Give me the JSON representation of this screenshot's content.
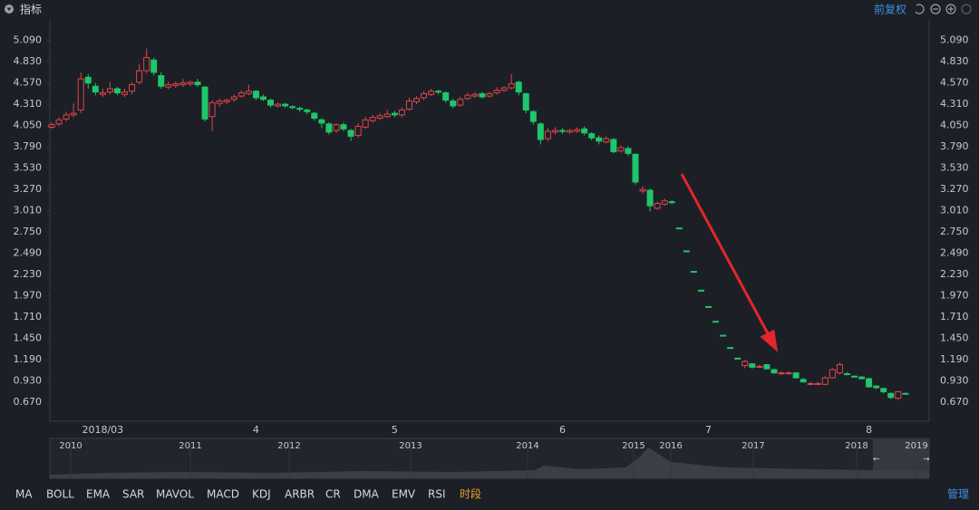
{
  "header": {
    "title": "指标",
    "adjust": "前复权"
  },
  "chart_data": {
    "type": "candlestick",
    "categories": [
      null,
      null,
      null,
      null,
      null,
      null,
      null,
      "2018/03",
      null,
      null,
      null,
      null,
      null,
      null,
      null,
      null,
      null,
      null,
      null,
      null,
      null,
      null,
      null,
      null,
      null,
      null,
      null,
      null,
      "4",
      null,
      null,
      null,
      null,
      null,
      null,
      null,
      null,
      null,
      null,
      null,
      null,
      null,
      null,
      null,
      null,
      null,
      null,
      "5",
      null,
      null,
      null,
      null,
      null,
      null,
      null,
      null,
      null,
      null,
      null,
      null,
      null,
      null,
      null,
      null,
      null,
      null,
      null,
      null,
      null,
      null,
      "6",
      null,
      null,
      null,
      null,
      null,
      null,
      null,
      null,
      null,
      null,
      null,
      null,
      null,
      null,
      null,
      null,
      null,
      null,
      null,
      "7",
      null,
      null,
      null,
      null,
      null,
      null,
      null,
      null,
      null,
      null,
      null,
      null,
      null,
      null,
      null,
      null,
      null,
      null,
      null,
      null,
      null,
      "8",
      null,
      null,
      null,
      null,
      null
    ],
    "open": [
      4.03,
      4.07,
      4.13,
      4.18,
      4.24,
      4.64,
      4.53,
      4.43,
      4.46,
      4.5,
      4.43,
      4.47,
      4.58,
      4.72,
      4.85,
      4.66,
      4.52,
      4.54,
      4.55,
      4.56,
      4.58,
      4.52,
      4.16,
      4.32,
      4.34,
      4.37,
      4.41,
      4.44,
      4.47,
      4.4,
      4.36,
      4.29,
      4.31,
      4.28,
      4.26,
      4.24,
      4.2,
      4.12,
      4.07,
      3.99,
      4.06,
      3.99,
      3.93,
      4.03,
      4.11,
      4.14,
      4.16,
      4.2,
      4.18,
      4.25,
      4.34,
      4.39,
      4.43,
      4.47,
      4.45,
      4.35,
      4.3,
      4.38,
      4.41,
      4.44,
      4.41,
      4.45,
      4.48,
      4.51,
      4.58,
      4.44,
      4.22,
      4.07,
      3.89,
      3.97,
      3.99,
      3.97,
      3.98,
      4.01,
      3.95,
      3.9,
      3.85,
      3.88,
      3.74,
      3.77,
      3.7,
      3.25,
      3.26,
      3.04,
      3.09,
      3.12,
      2.8,
      2.52,
      2.27,
      2.04,
      1.84,
      1.66,
      1.49,
      1.34,
      1.21,
      1.12,
      1.14,
      1.1,
      1.13,
      1.07,
      1.03,
      1.02,
      1.03,
      0.95,
      0.89,
      0.9,
      0.89,
      0.97,
      1.03,
      1.02,
      0.99,
      0.98,
      0.96,
      0.87,
      0.84,
      0.78,
      0.72,
      0.78
    ],
    "high": [
      4.09,
      4.15,
      4.22,
      4.32,
      4.7,
      4.68,
      4.57,
      4.5,
      4.58,
      4.52,
      4.5,
      4.58,
      4.8,
      4.99,
      4.88,
      4.7,
      4.59,
      4.59,
      4.62,
      4.6,
      4.62,
      4.53,
      4.36,
      4.38,
      4.38,
      4.43,
      4.48,
      4.55,
      4.48,
      4.43,
      4.38,
      4.33,
      4.33,
      4.3,
      4.28,
      4.26,
      4.22,
      4.14,
      4.09,
      4.08,
      4.09,
      4.01,
      4.08,
      4.16,
      4.18,
      4.2,
      4.24,
      4.23,
      4.27,
      4.39,
      4.41,
      4.47,
      4.5,
      4.49,
      4.47,
      4.38,
      4.4,
      4.45,
      4.46,
      4.46,
      4.46,
      4.52,
      4.53,
      4.68,
      4.6,
      4.45,
      4.24,
      4.09,
      4.02,
      4.03,
      4.02,
      4.01,
      4.03,
      4.04,
      3.97,
      3.93,
      3.92,
      3.9,
      3.81,
      3.8,
      3.71,
      3.31,
      3.28,
      3.12,
      3.16,
      3.14,
      2.8,
      2.52,
      2.27,
      2.04,
      1.84,
      1.66,
      1.49,
      1.34,
      1.21,
      1.19,
      1.15,
      1.13,
      1.14,
      1.08,
      1.05,
      1.05,
      1.04,
      0.97,
      0.92,
      0.92,
      0.99,
      1.09,
      1.16,
      1.04,
      1.0,
      0.99,
      0.97,
      0.88,
      0.85,
      0.79,
      0.81,
      0.79
    ],
    "low": [
      4.01,
      4.04,
      4.1,
      4.15,
      4.2,
      4.5,
      4.42,
      4.4,
      4.43,
      4.42,
      4.4,
      4.43,
      4.55,
      4.68,
      4.66,
      4.5,
      4.49,
      4.51,
      4.52,
      4.53,
      4.52,
      4.1,
      3.98,
      4.28,
      4.31,
      4.34,
      4.39,
      4.42,
      4.36,
      4.35,
      4.27,
      4.27,
      4.27,
      4.25,
      4.22,
      4.19,
      4.11,
      4.02,
      3.94,
      3.96,
      3.98,
      3.86,
      3.9,
      4.01,
      4.08,
      4.12,
      4.14,
      4.15,
      4.15,
      4.23,
      4.31,
      4.36,
      4.41,
      4.43,
      4.33,
      4.26,
      4.28,
      4.36,
      4.39,
      4.38,
      4.39,
      4.43,
      4.46,
      4.49,
      4.42,
      4.2,
      4.06,
      3.82,
      3.86,
      3.94,
      3.95,
      3.95,
      3.96,
      3.93,
      3.87,
      3.82,
      3.83,
      3.71,
      3.72,
      3.68,
      3.33,
      3.22,
      3.0,
      3.02,
      3.07,
      3.09,
      2.8,
      2.52,
      2.27,
      2.04,
      1.84,
      1.66,
      1.49,
      1.34,
      1.21,
      1.09,
      1.08,
      1.09,
      1.07,
      1.02,
      1.01,
      1.01,
      0.96,
      0.91,
      0.88,
      0.89,
      0.88,
      0.96,
      1.01,
      1.0,
      0.97,
      0.95,
      0.85,
      0.83,
      0.78,
      0.71,
      0.7,
      0.77
    ],
    "close": [
      4.06,
      4.12,
      4.18,
      4.2,
      4.62,
      4.57,
      4.46,
      4.45,
      4.5,
      4.45,
      4.46,
      4.55,
      4.72,
      4.88,
      4.7,
      4.53,
      4.55,
      4.56,
      4.57,
      4.58,
      4.55,
      4.13,
      4.33,
      4.35,
      4.36,
      4.4,
      4.45,
      4.47,
      4.39,
      4.37,
      4.3,
      4.31,
      4.29,
      4.27,
      4.25,
      4.22,
      4.14,
      4.08,
      3.97,
      4.06,
      4.01,
      3.92,
      4.04,
      4.12,
      4.15,
      4.17,
      4.19,
      4.18,
      4.24,
      4.35,
      4.38,
      4.44,
      4.47,
      4.46,
      4.36,
      4.29,
      4.37,
      4.42,
      4.43,
      4.4,
      4.44,
      4.48,
      4.51,
      4.56,
      4.46,
      4.24,
      4.1,
      3.88,
      3.98,
      3.99,
      3.98,
      3.99,
      4.0,
      3.96,
      3.9,
      3.86,
      3.89,
      3.73,
      3.78,
      3.71,
      3.36,
      3.27,
      3.07,
      3.1,
      3.13,
      3.11,
      2.8,
      2.52,
      2.27,
      2.04,
      1.84,
      1.66,
      1.49,
      1.34,
      1.21,
      1.17,
      1.1,
      1.11,
      1.08,
      1.03,
      1.03,
      1.03,
      0.97,
      0.92,
      0.9,
      0.9,
      0.97,
      1.07,
      1.13,
      1.02,
      0.99,
      0.96,
      0.86,
      0.85,
      0.8,
      0.73,
      0.8,
      0.78
    ],
    "up_color": "#e0444a",
    "down_color": "#1fc66a",
    "ylim": [
      0.44,
      5.34
    ],
    "yticks": [
      {
        "value": 5.09,
        "label": "5.090"
      },
      {
        "value": 4.83,
        "label": "4.830"
      },
      {
        "value": 4.57,
        "label": "4.570"
      },
      {
        "value": 4.31,
        "label": "4.310"
      },
      {
        "value": 4.05,
        "label": "4.050"
      },
      {
        "value": 3.79,
        "label": "3.790"
      },
      {
        "value": 3.53,
        "label": "3.530"
      },
      {
        "value": 3.27,
        "label": "3.270"
      },
      {
        "value": 3.01,
        "label": "3.010"
      },
      {
        "value": 2.75,
        "label": "2.750"
      },
      {
        "value": 2.49,
        "label": "2.490"
      },
      {
        "value": 2.23,
        "label": "2.230"
      },
      {
        "value": 1.97,
        "label": "1.970"
      },
      {
        "value": 1.71,
        "label": "1.710"
      },
      {
        "value": 1.45,
        "label": "1.450"
      },
      {
        "value": 1.19,
        "label": "1.190"
      },
      {
        "value": 0.93,
        "label": "0.930"
      },
      {
        "value": 0.67,
        "label": "0.670"
      }
    ]
  },
  "navigator": {
    "labels": [
      "2010",
      "2011",
      "2012",
      "2013",
      "2014",
      "2015",
      "2016",
      "2017",
      "2018",
      "2019"
    ]
  },
  "toolbar": {
    "items": [
      "MA",
      "BOLL",
      "EMA",
      "SAR",
      "MAVOL",
      "MACD",
      "KDJ",
      "ARBR",
      "CR",
      "DMA",
      "EMV",
      "RSI",
      "时段"
    ],
    "manage": "管理"
  }
}
